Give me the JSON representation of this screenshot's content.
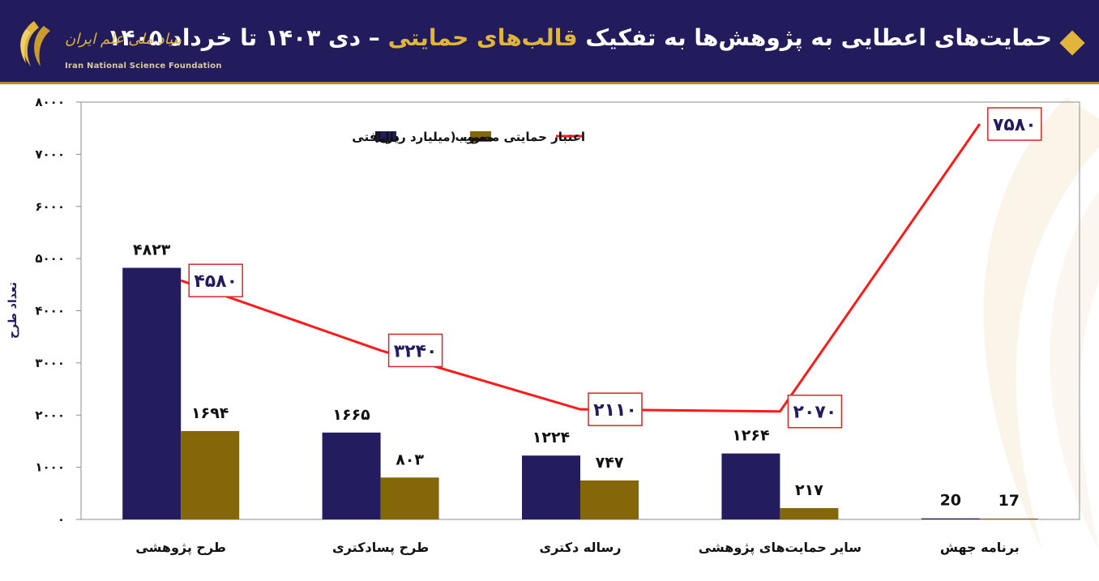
{
  "header": {
    "title_part1": "حمایت‌های اعطایی به پژوهش‌ها به تفکیک ",
    "title_highlight": "قالب‌های حمایتی",
    "title_part2": " – دی ۱۴۰۳ تا خرداد ۱۴۰۵",
    "logo_fa": "بنیاد ملی علم ایران",
    "logo_en": "Iran National Science Foundation",
    "accent_color": "#e0b53a",
    "background_color": "#221b5c"
  },
  "chart_data": {
    "type": "bar",
    "categories": [
      "طرح پژوهشی",
      "طرح پسادکتری",
      "رساله دکتری",
      "سایر حمایت‌های پژوهشی",
      "برنامه جهش"
    ],
    "series": [
      {
        "name": "دریافتی",
        "kind": "bar",
        "color": "#231c5f",
        "values": [
          4823,
          1665,
          1224,
          1264,
          20
        ],
        "labels": [
          "۴۸۲۳",
          "۱۶۶۵",
          "۱۲۲۴",
          "۱۲۶۴",
          "20"
        ]
      },
      {
        "name": "مصوب",
        "kind": "bar",
        "color": "#836709",
        "values": [
          1694,
          803,
          747,
          217,
          17
        ],
        "labels": [
          "۱۶۹۴",
          "۸۰۳",
          "۷۴۷",
          "۲۱۷",
          "17"
        ]
      },
      {
        "name": "اعتبار حمایتی مصوب (میلیارد ریال)",
        "kind": "line",
        "color": "#ff1a1a",
        "values": [
          4580,
          3240,
          2110,
          2070,
          7580
        ],
        "labels": [
          "۴۵۸۰",
          "۳۲۴۰",
          "۲۱۱۰",
          "۲۰۷۰",
          "۷۵۸۰"
        ]
      }
    ],
    "ylabel": "تعداد طرح",
    "ylim": [
      0,
      8000
    ],
    "yticks": [
      0,
      1000,
      2000,
      3000,
      4000,
      5000,
      6000,
      7000,
      8000
    ],
    "ytick_labels": [
      "۰",
      "۱۰۰۰",
      "۲۰۰۰",
      "۳۰۰۰",
      "۴۰۰۰",
      "۵۰۰۰",
      "۶۰۰۰",
      "۷۰۰۰",
      "۸۰۰۰"
    ],
    "legend_position": "top-center",
    "grid": false
  }
}
